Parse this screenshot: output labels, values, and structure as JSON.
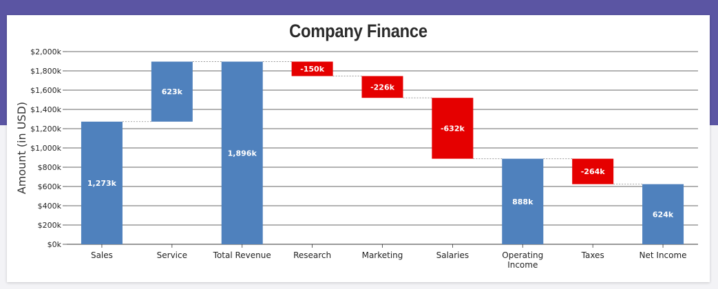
{
  "chart_data": {
    "type": "waterfall",
    "title": "Company Finance",
    "ylabel": "Amount (in USD)",
    "xlabel": "",
    "ylim": [
      0,
      2000
    ],
    "y_ticks": [
      0,
      200,
      400,
      600,
      800,
      1000,
      1200,
      1400,
      1600,
      1800,
      2000
    ],
    "y_tick_labels": [
      "$0k",
      "$200k",
      "$400k",
      "$600k",
      "$800k",
      "$1,000k",
      "$1,200k",
      "$1,400k",
      "$1,600k",
      "$1,800k",
      "$2,000k"
    ],
    "grid": true,
    "legend": "none",
    "colors": {
      "positive": "#4f81bd",
      "negative": "#e50000",
      "sum": "#4f81bd"
    },
    "categories": [
      "Sales",
      "Service",
      "Total Revenue",
      "Research",
      "Marketing",
      "Salaries",
      "Operating Income",
      "Taxes",
      "Net Income"
    ],
    "values": [
      1273,
      623,
      1896,
      -150,
      -226,
      -632,
      888,
      -264,
      624
    ],
    "is_sum": [
      false,
      false,
      true,
      false,
      false,
      false,
      true,
      false,
      true
    ],
    "data_labels": [
      "1,273k",
      "623k",
      "1,896k",
      "-150k",
      "-226k",
      "-632k",
      "888k",
      "-264k",
      "624k"
    ]
  },
  "page": {
    "band_color": "#5b55a3",
    "card_color": "#ffffff"
  }
}
